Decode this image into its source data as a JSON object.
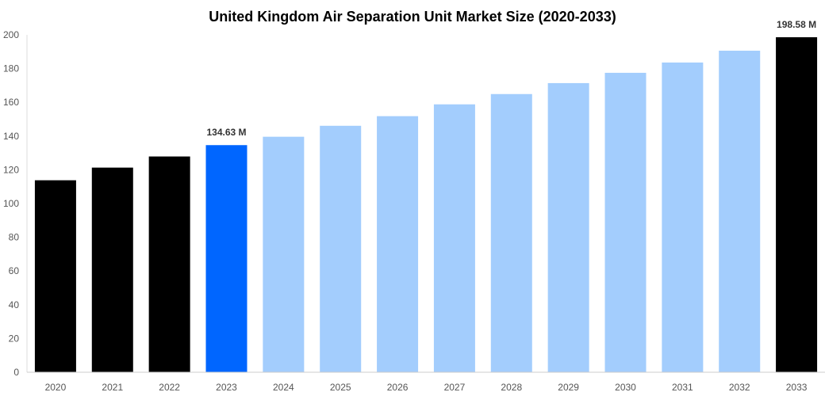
{
  "chart_data": {
    "type": "bar",
    "title": "United Kingdom Air Separation Unit Market Size (2020-2033)",
    "xlabel": "",
    "ylabel": "",
    "ylim": [
      0,
      200
    ],
    "yticks": [
      0,
      20,
      40,
      60,
      80,
      100,
      120,
      140,
      160,
      180,
      200
    ],
    "grid": false,
    "categories": [
      "2020",
      "2021",
      "2022",
      "2023",
      "2024",
      "2025",
      "2026",
      "2027",
      "2028",
      "2029",
      "2030",
      "2031",
      "2032",
      "2033"
    ],
    "values": [
      113.8,
      121.3,
      127.9,
      134.63,
      139.6,
      146.1,
      151.8,
      158.8,
      164.9,
      171.4,
      177.5,
      183.6,
      190.6,
      198.58
    ],
    "bar_colors": [
      "#000000",
      "#000000",
      "#000000",
      "#0066ff",
      "#a3cdfd",
      "#a3cdfd",
      "#a3cdfd",
      "#a3cdfd",
      "#a3cdfd",
      "#a3cdfd",
      "#a3cdfd",
      "#a3cdfd",
      "#a3cdfd",
      "#000000"
    ],
    "data_labels": [
      {
        "category": "2023",
        "text": "134.63 M"
      },
      {
        "category": "2033",
        "text": "198.58 M"
      }
    ]
  }
}
